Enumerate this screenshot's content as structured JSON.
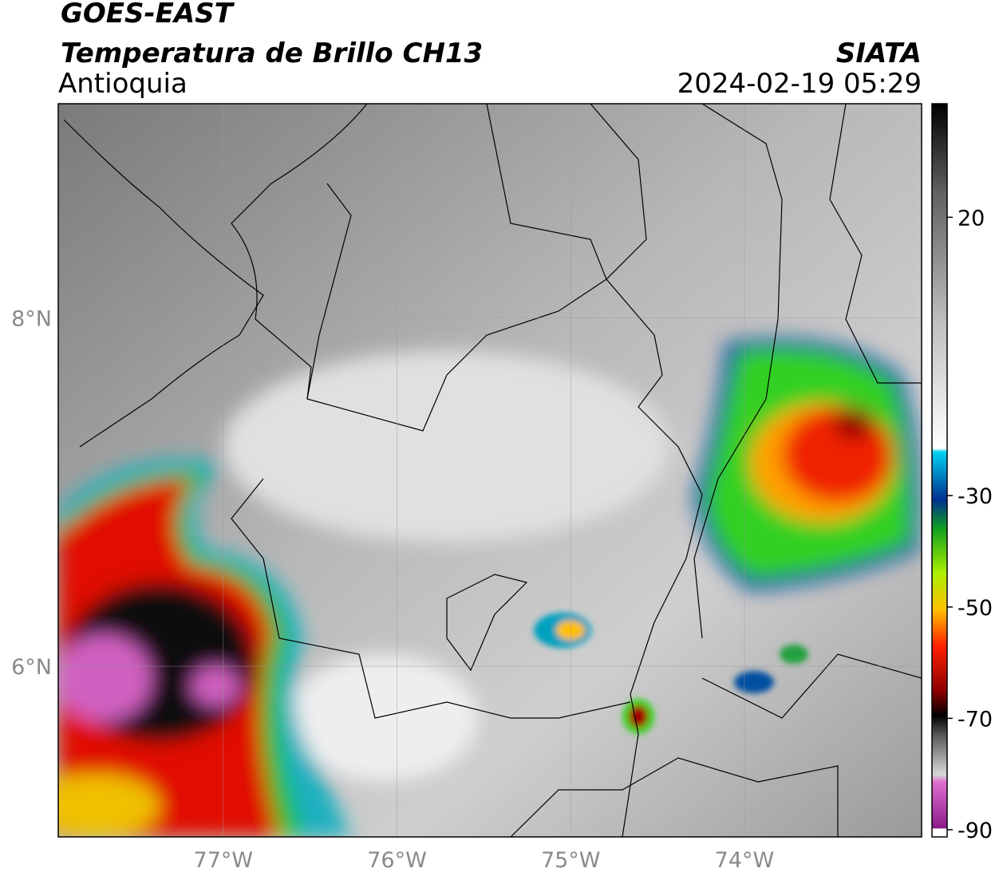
{
  "header": {
    "title": "GOES-EAST",
    "subtitle": "Temperatura de Brillo CH13",
    "region": "Antioquia",
    "source": "SIATA",
    "datetime": "2024-02-19 05:29"
  },
  "map": {
    "xlim": [
      -77.95,
      -72.98
    ],
    "ylim": [
      5.02,
      9.23
    ],
    "xticks": [
      {
        "value": -77,
        "label": "77°W"
      },
      {
        "value": -76,
        "label": "76°W"
      },
      {
        "value": -75,
        "label": "75°W"
      },
      {
        "value": -74,
        "label": "74°W"
      }
    ],
    "yticks": [
      {
        "value": 6,
        "label": "6°N"
      },
      {
        "value": 8,
        "label": "8°N"
      }
    ],
    "grid": true
  },
  "colorbar": {
    "lim": [
      -91.3,
      40.4
    ],
    "ticks": [
      -90,
      -70,
      -50,
      -30,
      20
    ]
  }
}
